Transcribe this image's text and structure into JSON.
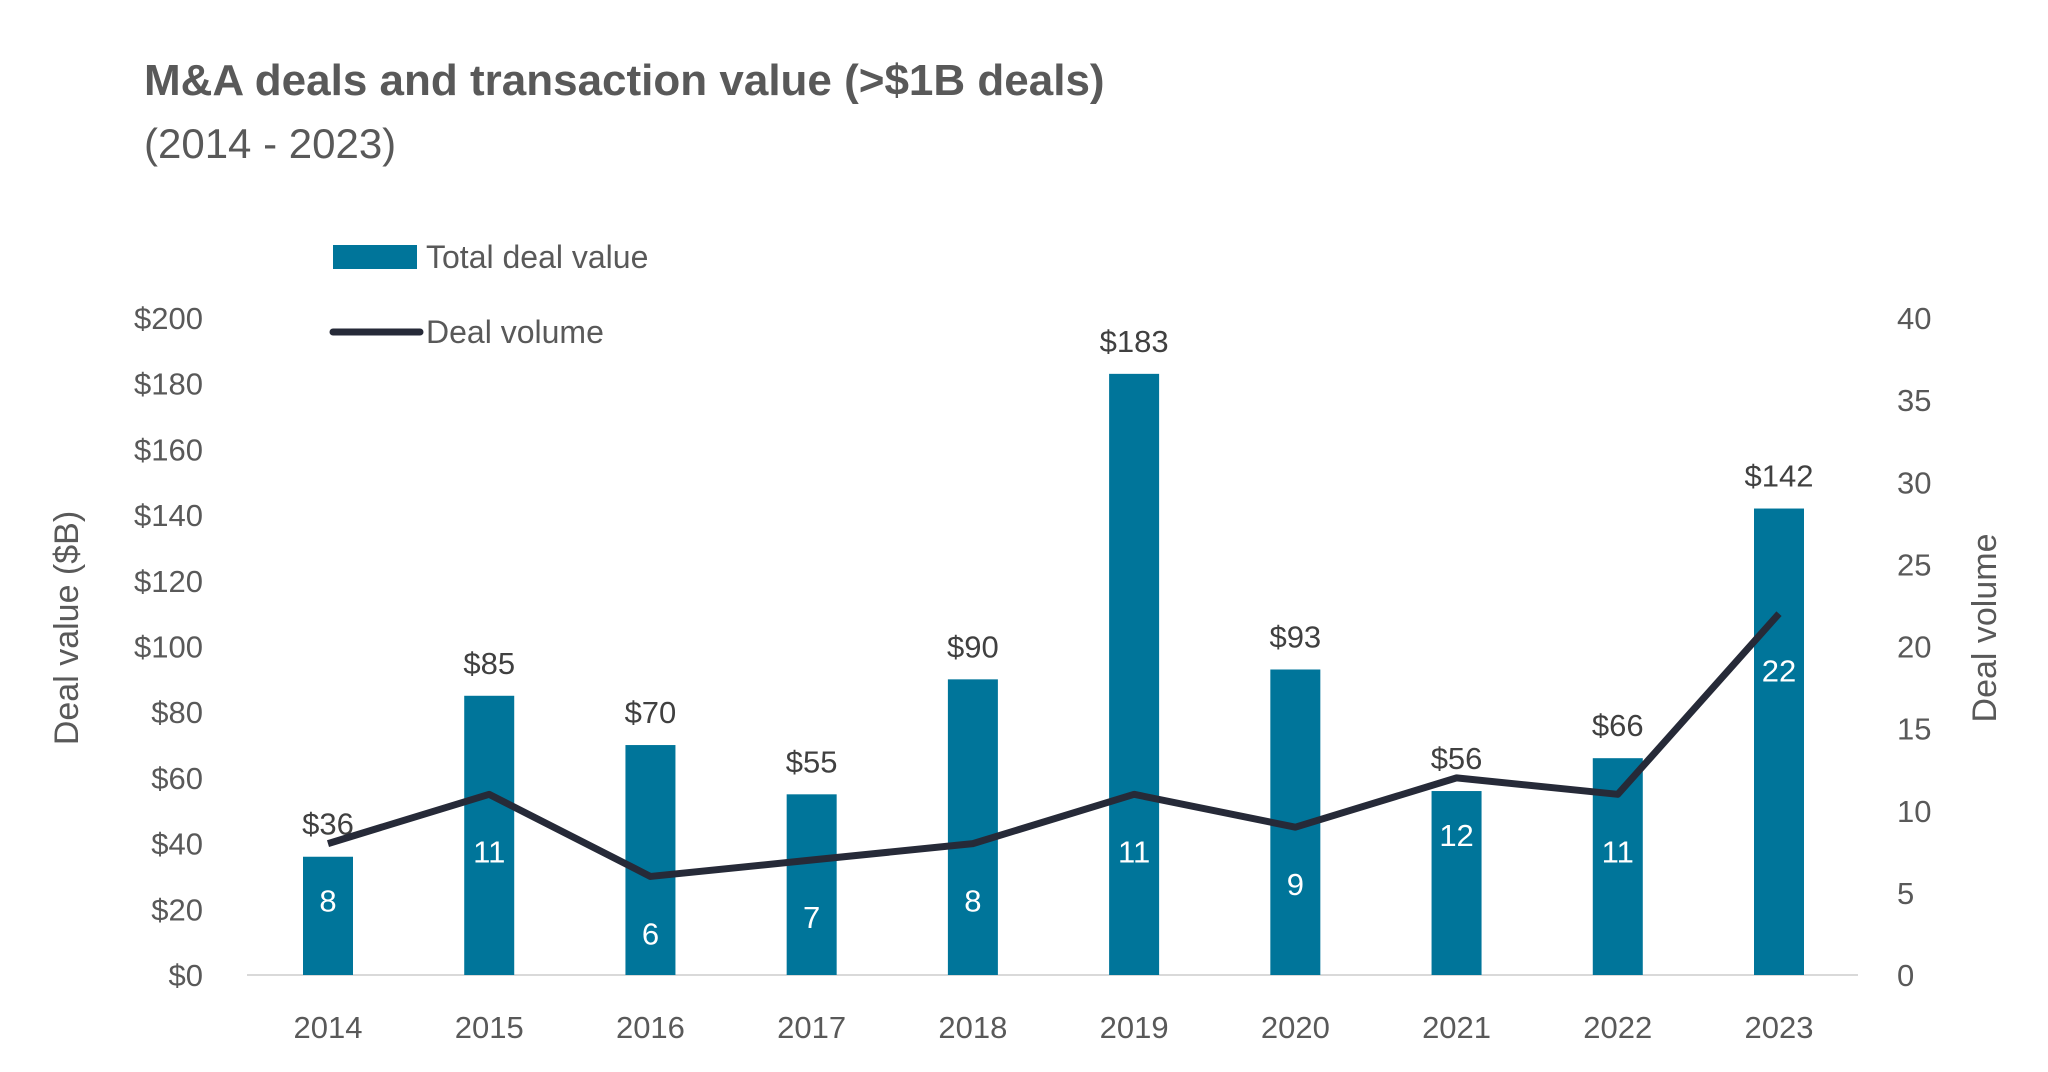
{
  "chart_data": {
    "type": "bar+line",
    "title": "M&A deals and transaction value (>$1B deals)",
    "subtitle": "(2014 - 2023)",
    "categories": [
      "2014",
      "2015",
      "2016",
      "2017",
      "2018",
      "2019",
      "2020",
      "2021",
      "2022",
      "2023"
    ],
    "series": [
      {
        "name": "Total deal value",
        "type": "bar",
        "axis": "left",
        "values": [
          36,
          85,
          70,
          55,
          90,
          183,
          93,
          56,
          66,
          142
        ],
        "labels": [
          "$36",
          "$85",
          "$70",
          "$55",
          "$90",
          "$183",
          "$93",
          "$56",
          "$66",
          "$142"
        ],
        "color": "#00759A"
      },
      {
        "name": "Deal volume",
        "type": "line",
        "axis": "right",
        "values": [
          8,
          11,
          6,
          7,
          8,
          11,
          9,
          12,
          11,
          22
        ],
        "labels": [
          "8",
          "11",
          "6",
          "7",
          "8",
          "11",
          "9",
          "12",
          "11",
          "22"
        ],
        "color": "#262A38"
      }
    ],
    "ylabel": "Deal value ($B)",
    "y2label": "Deal volume",
    "ylim": [
      0,
      200
    ],
    "y2lim": [
      0,
      40
    ],
    "yticks": [
      "$0",
      "$20",
      "$40",
      "$60",
      "$80",
      "$100",
      "$120",
      "$140",
      "$160",
      "$180",
      "$200"
    ],
    "y2ticks": [
      "0",
      "5",
      "10",
      "15",
      "20",
      "25",
      "30",
      "35",
      "40"
    ],
    "grid": false,
    "legend": "top-left"
  }
}
